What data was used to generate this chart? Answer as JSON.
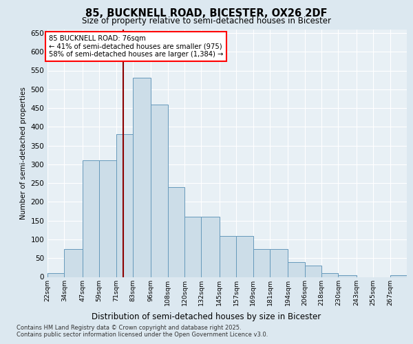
{
  "title_line1": "85, BUCKNELL ROAD, BICESTER, OX26 2DF",
  "title_line2": "Size of property relative to semi-detached houses in Bicester",
  "xlabel": "Distribution of semi-detached houses by size in Bicester",
  "ylabel": "Number of semi-detached properties",
  "bins": [
    "22sqm",
    "34sqm",
    "47sqm",
    "59sqm",
    "71sqm",
    "83sqm",
    "96sqm",
    "108sqm",
    "120sqm",
    "132sqm",
    "145sqm",
    "157sqm",
    "169sqm",
    "181sqm",
    "194sqm",
    "206sqm",
    "218sqm",
    "230sqm",
    "243sqm",
    "255sqm",
    "267sqm"
  ],
  "bin_edges": [
    22,
    34,
    47,
    59,
    71,
    83,
    96,
    108,
    120,
    132,
    145,
    157,
    169,
    181,
    194,
    206,
    218,
    230,
    243,
    255,
    267,
    279
  ],
  "values": [
    10,
    75,
    310,
    310,
    380,
    530,
    460,
    240,
    160,
    160,
    110,
    110,
    75,
    75,
    40,
    30,
    10,
    5,
    0,
    0,
    5
  ],
  "bar_color": "#ccdde8",
  "bar_edge_color": "#6699bb",
  "red_line_x": 76,
  "annotation_title": "85 BUCKNELL ROAD: 76sqm",
  "annotation_line1": "← 41% of semi-detached houses are smaller (975)",
  "annotation_line2": "58% of semi-detached houses are larger (1,384) →",
  "ylim": [
    0,
    660
  ],
  "yticks": [
    0,
    50,
    100,
    150,
    200,
    250,
    300,
    350,
    400,
    450,
    500,
    550,
    600,
    650
  ],
  "footer_line1": "Contains HM Land Registry data © Crown copyright and database right 2025.",
  "footer_line2": "Contains public sector information licensed under the Open Government Licence v3.0.",
  "bg_color": "#dce8f0",
  "plot_bg_color": "#e8f0f5"
}
